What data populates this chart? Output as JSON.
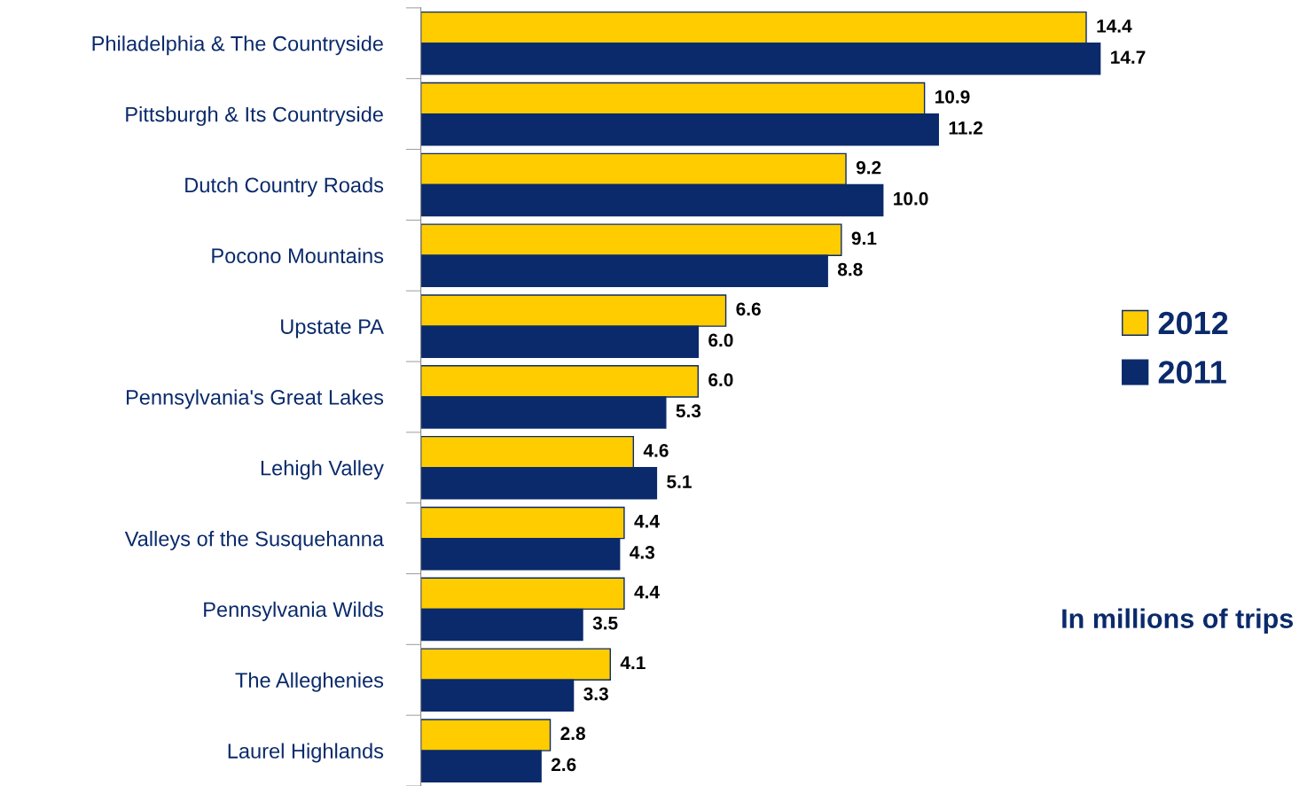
{
  "chart_data": {
    "type": "bar",
    "orientation": "horizontal",
    "categories": [
      "Philadelphia & The Countryside",
      "Pittsburgh & Its Countryside",
      "Dutch Country Roads",
      "Pocono Mountains",
      "Upstate PA",
      "Pennsylvania's Great Lakes",
      "Lehigh Valley",
      "Valleys of the Susquehanna",
      "Pennsylvania Wilds",
      "The Alleghenies",
      "Laurel Highlands"
    ],
    "series": [
      {
        "name": "2012",
        "color": "#ffcc00",
        "values": [
          14.4,
          10.9,
          9.2,
          9.1,
          6.6,
          6.0,
          4.6,
          4.4,
          4.4,
          4.1,
          2.8
        ],
        "value_labels": [
          "14.4",
          "10.9",
          "9.2",
          "9.1",
          "6.6",
          "6.0",
          "4.6",
          "4.4",
          "4.4",
          "4.1",
          "2.8"
        ]
      },
      {
        "name": "2011",
        "color": "#0a2a6b",
        "values": [
          14.7,
          11.2,
          10.0,
          8.8,
          6.0,
          5.3,
          5.1,
          4.3,
          3.5,
          3.3,
          2.6
        ],
        "value_labels": [
          "14.7",
          "11.2",
          "10.0",
          "8.8",
          "6.0",
          "5.3",
          "5.1",
          "4.3",
          "3.5",
          "3.3",
          "2.6"
        ]
      }
    ],
    "legend": "right",
    "grid": false,
    "tick_labels": "y",
    "annotations": [
      "In millions of trips"
    ]
  }
}
